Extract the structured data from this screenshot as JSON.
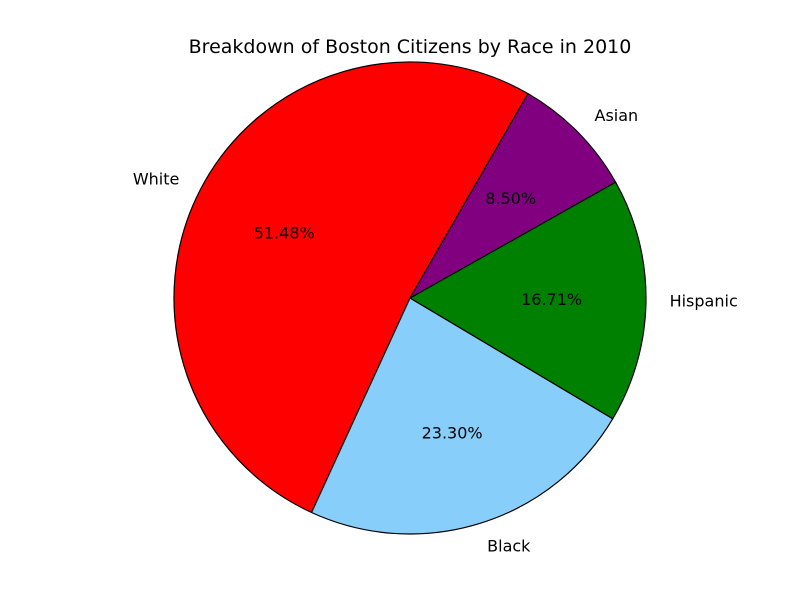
{
  "chart_data": {
    "type": "pie",
    "title": "Breakdown of Boston Citizens by Race in 2010",
    "slices": [
      {
        "label": "White",
        "value": 51.48,
        "pct_label": "51.48%",
        "color": "#ff0000"
      },
      {
        "label": "Black",
        "value": 23.3,
        "pct_label": "23.30%",
        "color": "#87cefa"
      },
      {
        "label": "Hispanic",
        "value": 16.71,
        "pct_label": "16.71%",
        "color": "#008000"
      },
      {
        "label": "Asian",
        "value": 8.5,
        "pct_label": "8.50%",
        "color": "#800080"
      }
    ],
    "start_angle_deg": 60,
    "direction": "counterclockwise",
    "edge_color": "#000000",
    "legend": "none"
  }
}
